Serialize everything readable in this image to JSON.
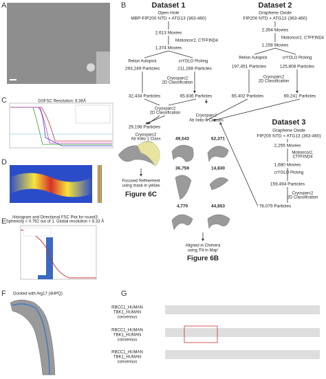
{
  "panels": {
    "a": "A",
    "b": "B",
    "c": "C",
    "d": "D",
    "e": "E",
    "f": "F",
    "g": "G"
  },
  "dataset1": {
    "title": "Dataset 1",
    "grid": "Open Hole",
    "sample": "MBP-FIP200 NTD + ATG13 (363-460)",
    "movies_raw": "2,613 Movies",
    "motion": "Motioncor2, CTFFIND4",
    "movies": "1,374 Movies",
    "relion": "Relion Autopick",
    "cryolo": "crYOLO Picking",
    "relion_particles": "293,249 Particles",
    "cryolo_particles": "211,288 Particles",
    "class2d_1": "Cryosparc2",
    "class2d_2": "2D Classification",
    "relion_kept": "32,434 Particles",
    "cryolo_kept": "65,836 Particles"
  },
  "dataset2": {
    "title": "Dataset 2",
    "grid": "Graphene Oxide",
    "sample": "FIP200 NTD + ATG13 (363-460)",
    "movies_raw": "2,354 Movies",
    "motion": "Motioncor2, CTFFIND4",
    "movies": "1,158 Movies",
    "relion": "Relion Autopick",
    "cryolo": "crYOLO Picking",
    "relion_particles": "197,451 Particles",
    "cryolo_particles": "125,808 Particles",
    "class2d_1": "Cryosparc2",
    "class2d_2": "2D Classification",
    "relion_kept": "65,402 Particles",
    "cryolo_kept": "69,241 Particles"
  },
  "dataset3": {
    "title": "Dataset 3",
    "grid": "Graphene Oxide",
    "sample": "FIP200 NTD + ATG13 (363-460)",
    "movies_raw": "2,255 Movies",
    "motion_1": "Motioncor2,",
    "motion_2": "CTFFIND4",
    "movies": "1,680 Movies",
    "cryolo": "crYOLO Picking",
    "cryolo_particles": "159,494 Particles",
    "class2d_1": "Cryosparc2",
    "class2d_2": "2D Classification",
    "kept": "78,079 Particles"
  },
  "merge": {
    "class2d_1": "Cryosparc2",
    "class2d_2": "2D Classification",
    "particles": "29,198 Particles",
    "abinitio1_1": "Cryosparc2",
    "abinitio1_2": "Ab Initio 1 Class",
    "refine_1": "Focused Refinement",
    "refine_2": "using mask in yellow",
    "figure_c": "Figure 6C",
    "abinitio6_1": "Cryosparc2",
    "abinitio6_2": "Ab Initio 6 Classes",
    "classes": [
      "49,543",
      "62,371",
      "36,759",
      "14,830",
      "4,770",
      "44,853"
    ],
    "aligned_1": "Aligned in Chimera",
    "aligned_2": "using 'Fit in Map'",
    "figure_b": "Figure 6B"
  },
  "fsc": {
    "title": "GSFSC Resolution: 8.36Å"
  },
  "dfsc": {
    "title": "Histogram and Directional FSC Plot for round3",
    "subtitle": "Sphericity = 0.762 out of 1. Global resolution = 8.33 Å"
  },
  "docked": {
    "title": "Docked with Atg17 (4HPQ)"
  },
  "alignment": {
    "names": [
      "RBCC1_HUMAN",
      "TBK1_HUMAN",
      "consensus"
    ]
  }
}
